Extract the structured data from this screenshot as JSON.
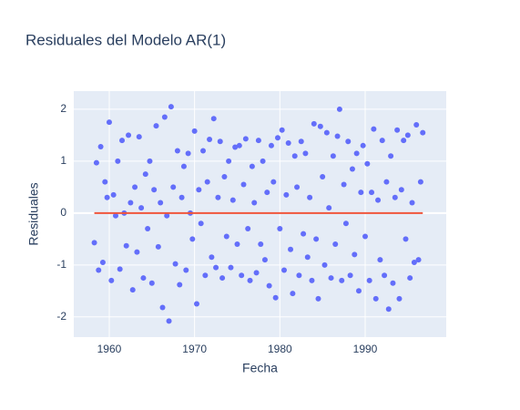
{
  "chart_data": {
    "type": "scatter",
    "title": "Residuales del Modelo AR(1)",
    "x_label": "Fecha",
    "y_label": "Residuales",
    "xlim": [
      1955.84,
      1999.5
    ],
    "ylim": [
      -2.39,
      2.35
    ],
    "xticks": [
      1960,
      1970,
      1980,
      1990
    ],
    "yticks": [
      -2,
      -1,
      0,
      1,
      2
    ],
    "grid": true,
    "series": [
      {
        "mode": "markers",
        "color": "#636efa",
        "x": [
          1958.25,
          1958.5,
          1958.75,
          1959,
          1959.25,
          1959.5,
          1959.75,
          1960,
          1960.25,
          1960.5,
          1960.75,
          1961,
          1961.25,
          1961.5,
          1961.75,
          1962,
          1962.25,
          1962.5,
          1962.75,
          1963,
          1963.25,
          1963.5,
          1963.75,
          1964,
          1964.25,
          1964.5,
          1964.75,
          1965,
          1965.25,
          1965.5,
          1965.75,
          1966,
          1966.25,
          1966.5,
          1966.75,
          1967,
          1967.25,
          1967.5,
          1967.75,
          1968,
          1968.25,
          1968.5,
          1968.75,
          1969,
          1969.25,
          1969.5,
          1969.75,
          1970,
          1970.25,
          1970.5,
          1970.75,
          1971,
          1971.25,
          1971.5,
          1971.75,
          1972,
          1972.25,
          1972.5,
          1972.75,
          1973,
          1973.25,
          1973.5,
          1973.75,
          1974,
          1974.25,
          1974.5,
          1974.75,
          1975,
          1975.25,
          1975.5,
          1975.75,
          1976,
          1976.25,
          1976.5,
          1976.75,
          1977,
          1977.25,
          1977.5,
          1977.75,
          1978,
          1978.25,
          1978.5,
          1978.75,
          1979,
          1979.25,
          1979.5,
          1979.75,
          1980,
          1980.25,
          1980.5,
          1980.75,
          1981,
          1981.25,
          1981.5,
          1981.75,
          1982,
          1982.25,
          1982.5,
          1982.75,
          1983,
          1983.25,
          1983.5,
          1983.75,
          1984,
          1984.25,
          1984.5,
          1984.75,
          1985,
          1985.25,
          1985.5,
          1985.75,
          1986,
          1986.25,
          1986.5,
          1986.75,
          1987,
          1987.25,
          1987.5,
          1987.75,
          1988,
          1988.25,
          1988.5,
          1988.75,
          1989,
          1989.25,
          1989.5,
          1989.75,
          1990,
          1990.25,
          1990.5,
          1990.75,
          1991,
          1991.25,
          1991.5,
          1991.75,
          1992,
          1992.25,
          1992.5,
          1992.75,
          1993,
          1993.25,
          1993.5,
          1993.75,
          1994,
          1994.25,
          1994.5,
          1994.75,
          1995,
          1995.25,
          1995.5,
          1995.75,
          1996,
          1996.25,
          1996.5,
          1996.75
        ],
        "values": [
          -0.57,
          0.97,
          -1.1,
          1.28,
          -0.95,
          0.6,
          0.3,
          1.75,
          -1.3,
          0.35,
          -0.05,
          1.0,
          -1.08,
          1.4,
          0.0,
          -0.63,
          1.5,
          0.2,
          -1.48,
          0.5,
          -0.75,
          1.47,
          0.1,
          -1.25,
          0.75,
          -0.3,
          1.0,
          -1.35,
          0.45,
          1.68,
          -0.65,
          0.2,
          -1.82,
          1.85,
          -0.05,
          -2.08,
          2.05,
          0.5,
          -0.98,
          1.2,
          -1.38,
          0.3,
          0.9,
          -1.1,
          1.15,
          0.0,
          -0.5,
          1.58,
          -1.75,
          0.45,
          -0.2,
          1.2,
          -1.2,
          0.6,
          1.42,
          -0.85,
          1.82,
          -1.05,
          0.3,
          1.38,
          -1.25,
          0.7,
          -0.45,
          1.0,
          -1.05,
          0.25,
          1.27,
          -0.6,
          1.3,
          -1.2,
          0.55,
          1.43,
          -0.3,
          -1.3,
          0.9,
          0.2,
          -1.15,
          1.4,
          -0.6,
          1.0,
          -0.9,
          0.4,
          -1.4,
          1.3,
          0.6,
          -1.63,
          1.45,
          -0.3,
          1.6,
          -1.1,
          0.35,
          1.35,
          -0.7,
          -1.55,
          1.1,
          0.5,
          -1.2,
          1.38,
          -0.4,
          1.15,
          -0.85,
          0.3,
          -1.3,
          1.72,
          -0.5,
          -1.65,
          1.67,
          0.7,
          -1.0,
          1.55,
          0.1,
          -1.25,
          1.1,
          -0.6,
          1.48,
          2.0,
          -1.3,
          0.55,
          -0.2,
          1.38,
          -1.2,
          0.85,
          -0.8,
          1.15,
          -1.5,
          0.4,
          1.3,
          -0.45,
          0.95,
          -1.3,
          0.4,
          1.62,
          -1.65,
          0.25,
          -0.9,
          1.4,
          -1.2,
          0.6,
          -1.85,
          1.1,
          -1.35,
          0.3,
          1.6,
          -1.65,
          0.45,
          1.4,
          -0.5,
          1.5,
          -1.25,
          0.2,
          -0.95,
          1.7,
          -0.9,
          0.6,
          1.55
        ]
      },
      {
        "mode": "lines",
        "color": "#ef553b",
        "x": [
          1958.25,
          1996.75
        ],
        "values": [
          0,
          0
        ]
      }
    ]
  }
}
